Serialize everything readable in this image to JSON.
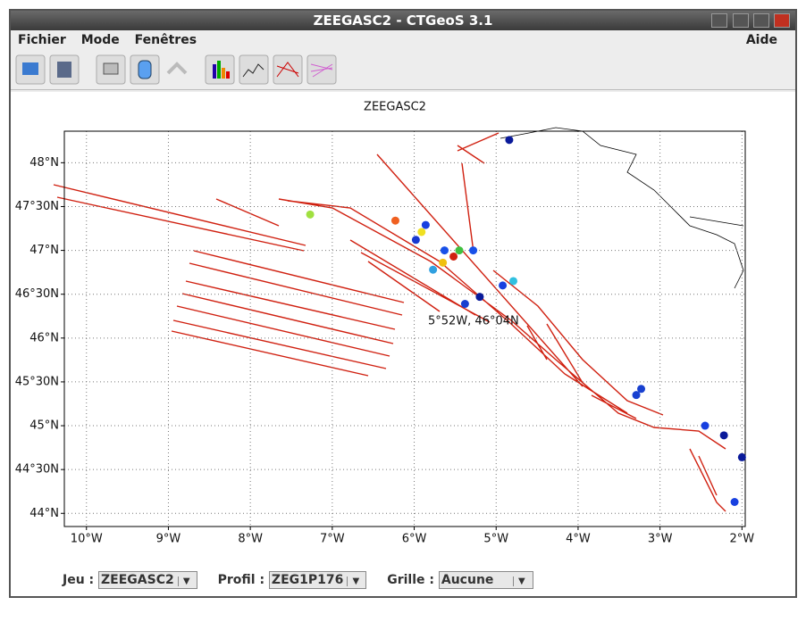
{
  "window": {
    "title": "ZEEGASC2 - CTGeoS 3.1"
  },
  "menu": {
    "items": [
      "Fichier",
      "Mode",
      "Fenêtres"
    ],
    "help": "Aide"
  },
  "chart_data": {
    "type": "map",
    "title": "ZEEGASC2",
    "xlim": [
      -10.27,
      -1.96
    ],
    "ylim": [
      43.85,
      48.36
    ],
    "xticks": [
      {
        "value": -10,
        "label": "10°W"
      },
      {
        "value": -9,
        "label": "9°W"
      },
      {
        "value": -8,
        "label": "8°W"
      },
      {
        "value": -7,
        "label": "7°W"
      },
      {
        "value": -6,
        "label": "6°W"
      },
      {
        "value": -5,
        "label": "5°W"
      },
      {
        "value": -4,
        "label": "4°W"
      },
      {
        "value": -3,
        "label": "3°W"
      },
      {
        "value": -2,
        "label": "2°W"
      }
    ],
    "yticks": [
      {
        "value": 44,
        "label": "44°N"
      },
      {
        "value": 44.5,
        "label": "44°30N"
      },
      {
        "value": 45,
        "label": "45°N"
      },
      {
        "value": 45.5,
        "label": "45°30N"
      },
      {
        "value": 46,
        "label": "46°N"
      },
      {
        "value": 46.5,
        "label": "46°30N"
      },
      {
        "value": 47,
        "label": "47°N"
      },
      {
        "value": 47.5,
        "label": "47°30N"
      },
      {
        "value": 48,
        "label": "48°N"
      }
    ],
    "grid": true,
    "annotation": "5°52W, 46°04N",
    "stations": {
      "lon": [
        -4.84,
        -7.27,
        -6.23,
        -5.86,
        -5.91,
        -5.98,
        -5.63,
        -5.52,
        -5.45,
        -5.28,
        -5.65,
        -5.77,
        -5.2,
        -5.38,
        -4.92,
        -4.79,
        -3.23,
        -3.29,
        -2.45,
        -2.22,
        -2.0,
        -2.09
      ],
      "lat": [
        48.26,
        47.41,
        47.34,
        47.29,
        47.21,
        47.12,
        47.0,
        46.93,
        47.0,
        47.0,
        46.86,
        46.78,
        46.47,
        46.39,
        46.6,
        46.65,
        45.42,
        45.35,
        45.0,
        44.89,
        44.64,
        44.13
      ],
      "colors": [
        "#0a1a9a",
        "#a0e040",
        "#f06020",
        "#1840e0",
        "#f0e020",
        "#1838d0",
        "#1850e8",
        "#d02010",
        "#40c040",
        "#1850e8",
        "#f0c010",
        "#30a0e0",
        "#0a1a9a",
        "#1840d0",
        "#1840e0",
        "#30c0e0",
        "#1840d0",
        "#1840d0",
        "#1840e0",
        "#0a1a9a",
        "#0a1a9a",
        "#1840e0"
      ]
    }
  },
  "controls": [
    {
      "label": "Jeu :",
      "value": "ZEEGASC2"
    },
    {
      "label": "Profil :",
      "value": "ZEG1P176"
    },
    {
      "label": "Grille :",
      "value": "Aucune"
    }
  ]
}
